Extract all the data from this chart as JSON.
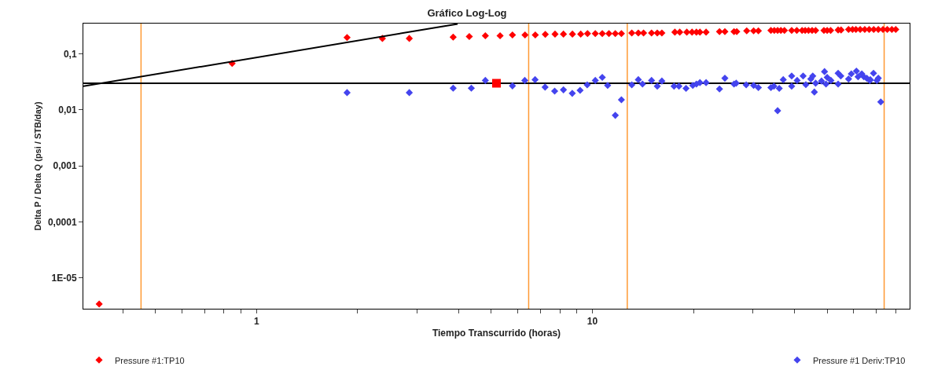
{
  "chart_data": {
    "type": "scatter",
    "title": "Gráfico Log-Log",
    "xlabel": "Tiempo Transcurrido (horas)",
    "ylabel": "Delta P / Delta Q (psi / STB/day)",
    "log": "xy",
    "grid": false,
    "legend": "bottom",
    "marker": "diamond",
    "xlim": [
      0.305,
      88
    ],
    "ylim": [
      2.8e-06,
      0.35
    ],
    "xticks": [
      {
        "value": 0.4,
        "label": null
      },
      {
        "value": 0.5,
        "label": null
      },
      {
        "value": 0.6,
        "label": null
      },
      {
        "value": 0.7,
        "label": null
      },
      {
        "value": 0.8,
        "label": null
      },
      {
        "value": 0.9,
        "label": null
      },
      1,
      {
        "value": 2,
        "label": null
      },
      {
        "value": 3,
        "label": null
      },
      {
        "value": 4,
        "label": null
      },
      {
        "value": 5,
        "label": null
      },
      {
        "value": 6,
        "label": null
      },
      {
        "value": 7,
        "label": null
      },
      {
        "value": 8,
        "label": null
      },
      {
        "value": 9,
        "label": null
      },
      10,
      {
        "value": 20,
        "label": null
      },
      {
        "value": 30,
        "label": null
      },
      {
        "value": 40,
        "label": null
      },
      {
        "value": 50,
        "label": null
      },
      {
        "value": 60,
        "label": null
      },
      {
        "value": 70,
        "label": null
      },
      {
        "value": 80,
        "label": null
      }
    ],
    "yticks": [
      {
        "value": 1e-05,
        "label": "1E-05"
      },
      {
        "value": 0.0001,
        "label": "0,0001"
      },
      {
        "value": 0.001,
        "label": "0,001"
      },
      {
        "value": 0.01,
        "label": "0,01"
      },
      {
        "value": 0.1,
        "label": "0,1"
      }
    ],
    "ref_lines": [
      {
        "axis": "x",
        "value": 0.453,
        "color": "#ff9933"
      },
      {
        "axis": "x",
        "value": 6.46,
        "color": "#ff9933"
      },
      {
        "axis": "x",
        "value": 12.7,
        "color": "#ff9933"
      },
      {
        "axis": "x",
        "value": 73.9,
        "color": "#ff9933"
      },
      {
        "axis": "y",
        "value": 0.03,
        "color": "#000000"
      }
    ],
    "series": [
      {
        "name": "Pressure #1:TP10",
        "color": "#ff0000",
        "x": [
          0.34,
          0.846,
          1.86,
          2.37,
          2.85,
          3.85,
          4.3,
          4.8,
          5.31,
          5.78,
          6.3,
          6.76,
          7.24,
          7.74,
          8.2,
          8.72,
          9.23,
          9.67,
          10.2,
          10.7,
          11.2,
          11.7,
          12.2,
          13.1,
          13.7,
          14.2,
          15,
          15.6,
          16.1,
          17.6,
          18.2,
          19.1,
          19.8,
          20.4,
          20.9,
          21.8,
          23.9,
          24.8,
          26.4,
          26.9,
          28.8,
          30.2,
          31.2,
          34,
          34.8,
          35.6,
          36.4,
          37.3,
          39.2,
          40.6,
          42.1,
          43,
          44,
          45.1,
          46.2,
          48.9,
          50,
          51.2,
          53.9,
          55,
          57.9,
          59.5,
          60.9,
          62.7,
          64.7,
          66.7,
          68.8,
          71,
          73.3,
          75.5,
          77.9,
          80
        ],
        "values": [
          3.4e-06,
          0.068,
          0.197,
          0.19,
          0.19,
          0.2,
          0.205,
          0.212,
          0.212,
          0.219,
          0.219,
          0.219,
          0.224,
          0.227,
          0.227,
          0.227,
          0.227,
          0.232,
          0.232,
          0.232,
          0.232,
          0.232,
          0.232,
          0.238,
          0.238,
          0.238,
          0.238,
          0.238,
          0.238,
          0.246,
          0.246,
          0.246,
          0.246,
          0.246,
          0.246,
          0.246,
          0.251,
          0.251,
          0.251,
          0.251,
          0.26,
          0.26,
          0.26,
          0.264,
          0.264,
          0.264,
          0.264,
          0.264,
          0.264,
          0.264,
          0.264,
          0.264,
          0.264,
          0.264,
          0.264,
          0.264,
          0.264,
          0.264,
          0.269,
          0.269,
          0.275,
          0.275,
          0.275,
          0.275,
          0.275,
          0.275,
          0.275,
          0.275,
          0.275,
          0.275,
          0.275,
          0.275
        ]
      },
      {
        "name": "Pressure #1 Deriv:TP10",
        "color": "#4444ee",
        "x": [
          1.86,
          2.85,
          3.85,
          4.36,
          4.8,
          5.78,
          6.29,
          6.75,
          7.23,
          7.72,
          8.2,
          8.71,
          9.19,
          9.65,
          10.2,
          10.7,
          11.1,
          11.7,
          12.2,
          13.1,
          13.7,
          14.1,
          15,
          15.6,
          16.1,
          17.5,
          18.1,
          19,
          19.9,
          20.4,
          20.9,
          21.8,
          23.9,
          24.8,
          26.4,
          26.8,
          28.7,
          30.2,
          31.2,
          34,
          34.7,
          35.6,
          36,
          37,
          39.2,
          39.2,
          40.7,
          42.4,
          43.2,
          44.7,
          45.3,
          45.8,
          46.2,
          48.1,
          49.1,
          49.6,
          50,
          51.3,
          53.9,
          53.9,
          54.9,
          57.9,
          59,
          61.1,
          61.8,
          63.4,
          64.3,
          65.6,
          67,
          67.2,
          68.7,
          70.3,
          71,
          72.2
        ],
        "values": [
          0.0204,
          0.0204,
          0.0245,
          0.0245,
          0.0337,
          0.0269,
          0.0337,
          0.0348,
          0.0256,
          0.0217,
          0.0229,
          0.0198,
          0.0224,
          0.0281,
          0.0337,
          0.0382,
          0.0275,
          0.008,
          0.0152,
          0.0281,
          0.0348,
          0.0291,
          0.0337,
          0.0265,
          0.0329,
          0.0265,
          0.0265,
          0.0243,
          0.0275,
          0.0291,
          0.0308,
          0.0308,
          0.0237,
          0.0369,
          0.0291,
          0.0301,
          0.0281,
          0.0275,
          0.0251,
          0.0251,
          0.0265,
          0.0097,
          0.0243,
          0.0348,
          0.0265,
          0.0404,
          0.0337,
          0.0404,
          0.0284,
          0.0357,
          0.0404,
          0.0209,
          0.0301,
          0.0329,
          0.0485,
          0.0291,
          0.0382,
          0.0337,
          0.0291,
          0.0453,
          0.0404,
          0.0357,
          0.0443,
          0.0496,
          0.0391,
          0.0443,
          0.0391,
          0.0369,
          0.0337,
          0.0348,
          0.0453,
          0.0337,
          0.0369,
          0.0139
        ]
      },
      {
        "color": "#ff0000",
        "marker": "square",
        "x": [
          5.18
        ],
        "values": [
          0.03
        ]
      },
      {
        "type": "line",
        "color": "#000000",
        "marker": "none",
        "line_style": "solid",
        "x": [
          0.305,
          3.97
        ],
        "values": [
          0.0265,
          0.345
        ]
      }
    ]
  }
}
